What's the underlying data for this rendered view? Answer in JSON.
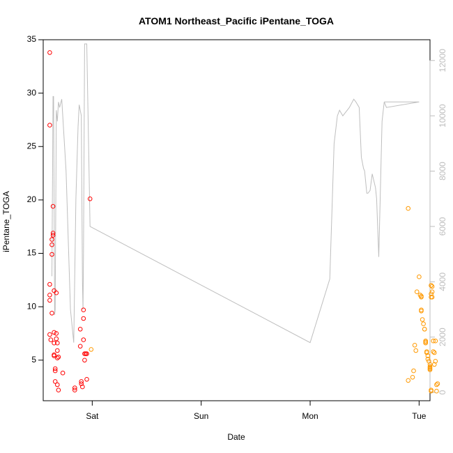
{
  "chart_data": {
    "type": "scatter",
    "title": "ATOM1 Northeast_Pacific iPentane_TOGA",
    "xlabel": "Date",
    "ylabel": "iPentane_TOGA",
    "x_ticks": [
      "Sat",
      "Sun",
      "Mon",
      "Tue"
    ],
    "y_ticks": [
      5,
      10,
      15,
      20,
      25,
      30,
      35
    ],
    "y2_ticks": [
      0,
      2000,
      4000,
      6000,
      8000,
      10000,
      12000
    ],
    "xlim": [
      -0.45,
      3.1
    ],
    "ylim": [
      1.2,
      35.0
    ],
    "y2lim": [
      -300,
      12750
    ],
    "grid": false,
    "colors": {
      "series_red": "#ff0000",
      "series_orange": "#ff9900",
      "line": "#bebebe",
      "axis_right": "#bdbdbd"
    },
    "series": [
      {
        "color": "#ff0000",
        "x": [
          -0.39,
          -0.39,
          -0.39,
          -0.39,
          -0.39,
          -0.39,
          -0.38,
          -0.37,
          -0.37,
          -0.37,
          -0.37,
          -0.36,
          -0.36,
          -0.36,
          -0.35,
          -0.35,
          -0.35,
          -0.35,
          -0.35,
          -0.34,
          -0.34,
          -0.34,
          -0.33,
          -0.33,
          -0.33,
          -0.32,
          -0.32,
          -0.32,
          -0.32,
          -0.31,
          -0.31,
          -0.27,
          -0.16,
          -0.16,
          -0.11,
          -0.11,
          -0.1,
          -0.1,
          -0.09,
          -0.08,
          -0.08,
          -0.08,
          -0.07,
          -0.07,
          -0.06,
          -0.05,
          -0.05,
          -0.02
        ],
        "y": [
          33.8,
          27.0,
          12.1,
          11.1,
          10.6,
          7.4,
          6.9,
          16.3,
          15.8,
          14.9,
          9.4,
          19.4,
          16.9,
          16.7,
          11.5,
          7.6,
          6.6,
          5.5,
          5.4,
          4.2,
          4.0,
          3.0,
          11.3,
          7.5,
          7.0,
          6.6,
          5.9,
          5.2,
          2.7,
          5.3,
          2.2,
          3.8,
          2.4,
          2.2,
          7.9,
          6.3,
          3.0,
          2.8,
          2.5,
          9.7,
          8.9,
          6.9,
          5.6,
          5.0,
          5.6,
          5.6,
          3.2,
          20.1
        ]
      },
      {
        "color": "#ff9900",
        "x": [
          -0.01,
          2.9,
          2.9,
          2.94,
          2.95,
          2.96,
          2.97,
          2.98,
          3.0,
          3.01,
          3.02,
          3.02,
          3.02,
          3.02,
          3.03,
          3.04,
          3.05,
          3.05,
          3.06,
          3.06,
          3.06,
          3.07,
          3.07,
          3.08,
          3.08,
          3.09,
          3.1,
          3.1,
          3.1,
          3.1,
          3.1,
          3.11,
          3.11,
          3.11,
          3.11,
          3.11,
          3.11,
          3.12,
          3.12,
          3.12,
          3.13,
          3.13,
          3.14,
          3.14,
          3.15,
          3.15,
          3.16,
          3.16,
          3.17
        ],
        "y": [
          6.0,
          19.2,
          3.1,
          3.4,
          4.0,
          6.4,
          5.9,
          11.4,
          12.8,
          11.1,
          11.0,
          10.9,
          9.7,
          9.6,
          8.8,
          8.4,
          7.9,
          7.9,
          6.8,
          6.7,
          6.6,
          5.8,
          5.7,
          5.4,
          5.1,
          4.9,
          4.6,
          4.4,
          4.3,
          4.2,
          4.1,
          2.1,
          12.0,
          12.0,
          11.2,
          10.9,
          2.2,
          11.9,
          11.4,
          10.9,
          6.8,
          5.8,
          5.7,
          4.6,
          4.9,
          6.8,
          2.1,
          2.7,
          2.8
        ]
      }
    ],
    "line_series": {
      "color": "#bebebe",
      "axis": "right",
      "x": [
        -0.37,
        -0.36,
        -0.355,
        -0.345,
        -0.34,
        -0.33,
        -0.32,
        -0.31,
        -0.3,
        -0.28,
        -0.24,
        -0.2,
        -0.17,
        -0.15,
        -0.13,
        -0.12,
        -0.1,
        -0.09,
        -0.085,
        -0.08,
        -0.07,
        -0.06,
        -0.05,
        -0.02,
        2.0,
        2.18,
        2.22,
        2.25,
        2.27,
        2.3,
        2.36,
        2.4,
        2.42,
        2.45,
        2.47,
        2.49,
        2.5,
        2.52,
        2.53,
        2.55,
        2.57,
        2.6,
        2.61,
        2.63,
        2.66,
        2.68,
        2.7,
        3.0,
        2.68
      ],
      "y": [
        4200,
        10700,
        10700,
        2800,
        3000,
        10200,
        9800,
        10500,
        10300,
        10600,
        8000,
        3000,
        1800,
        7000,
        9600,
        10400,
        10000,
        4000,
        3000,
        5000,
        12600,
        12600,
        12600,
        6000,
        1800,
        4100,
        9000,
        10000,
        10200,
        10000,
        10300,
        10600,
        10500,
        10300,
        8500,
        8100,
        8000,
        7200,
        7200,
        7300,
        7900,
        7400,
        7000,
        4900,
        9800,
        10500,
        10300,
        10500,
        10500
      ]
    }
  }
}
